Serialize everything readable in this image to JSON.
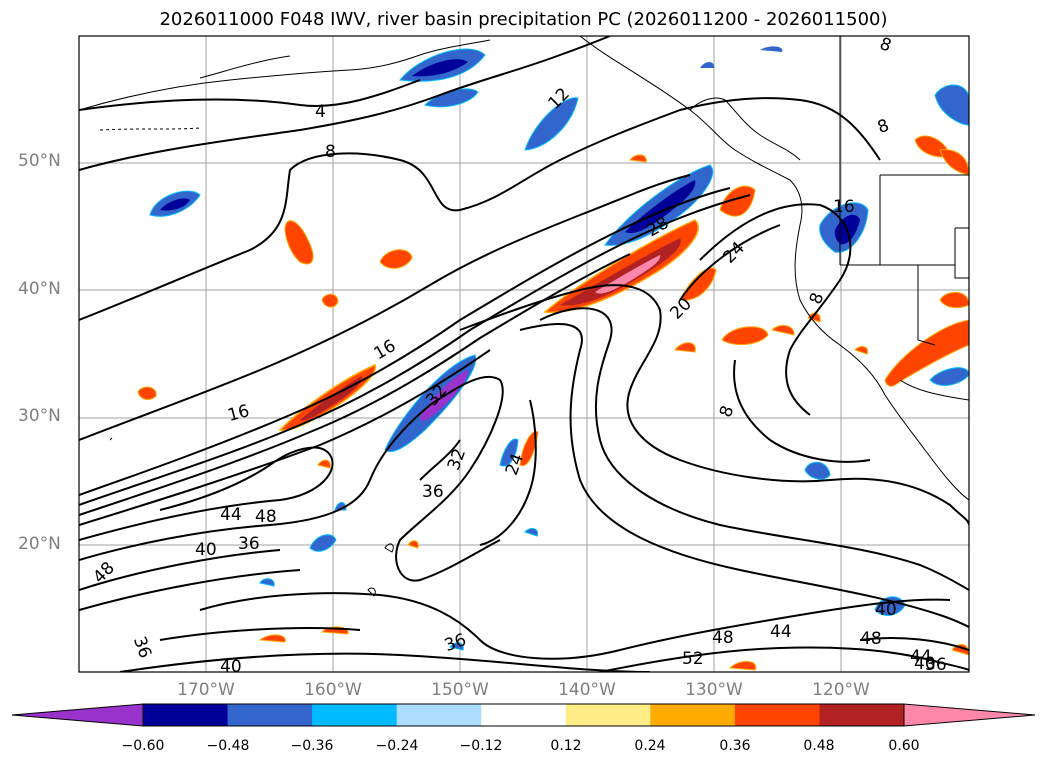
{
  "title": "2026011000 F048 IWV, river basin precipitation PC (2026011200 - 2026011500)",
  "axes": {
    "lat_labels": [
      "50°N",
      "40°N",
      "30°N",
      "20°N"
    ],
    "lon_labels": [
      "170°W",
      "160°W",
      "150°W",
      "140°W",
      "130°W",
      "120°W"
    ]
  },
  "colorbar": {
    "colors": [
      "#9933cc",
      "#000099",
      "#3366cc",
      "#00bbff",
      "#aaddff",
      "#ffffff",
      "#ffee88",
      "#ffaa00",
      "#ff4400",
      "#b32222",
      "#ff88aa"
    ],
    "ticks": [
      "−0.60",
      "−0.48",
      "−0.36",
      "−0.24",
      "−0.12",
      "0.12",
      "0.24",
      "0.36",
      "0.48",
      "0.60"
    ]
  },
  "contour_labels": [
    "4",
    "8",
    "12",
    "16",
    "16",
    "16",
    "20",
    "24",
    "24",
    "28",
    "32",
    "32",
    "36",
    "36",
    "36",
    "36",
    "40",
    "40",
    "40",
    "44",
    "44",
    "44",
    "48",
    "48",
    "48",
    "48",
    "52",
    "8",
    "8",
    "8",
    "8",
    "36",
    "40"
  ]
}
